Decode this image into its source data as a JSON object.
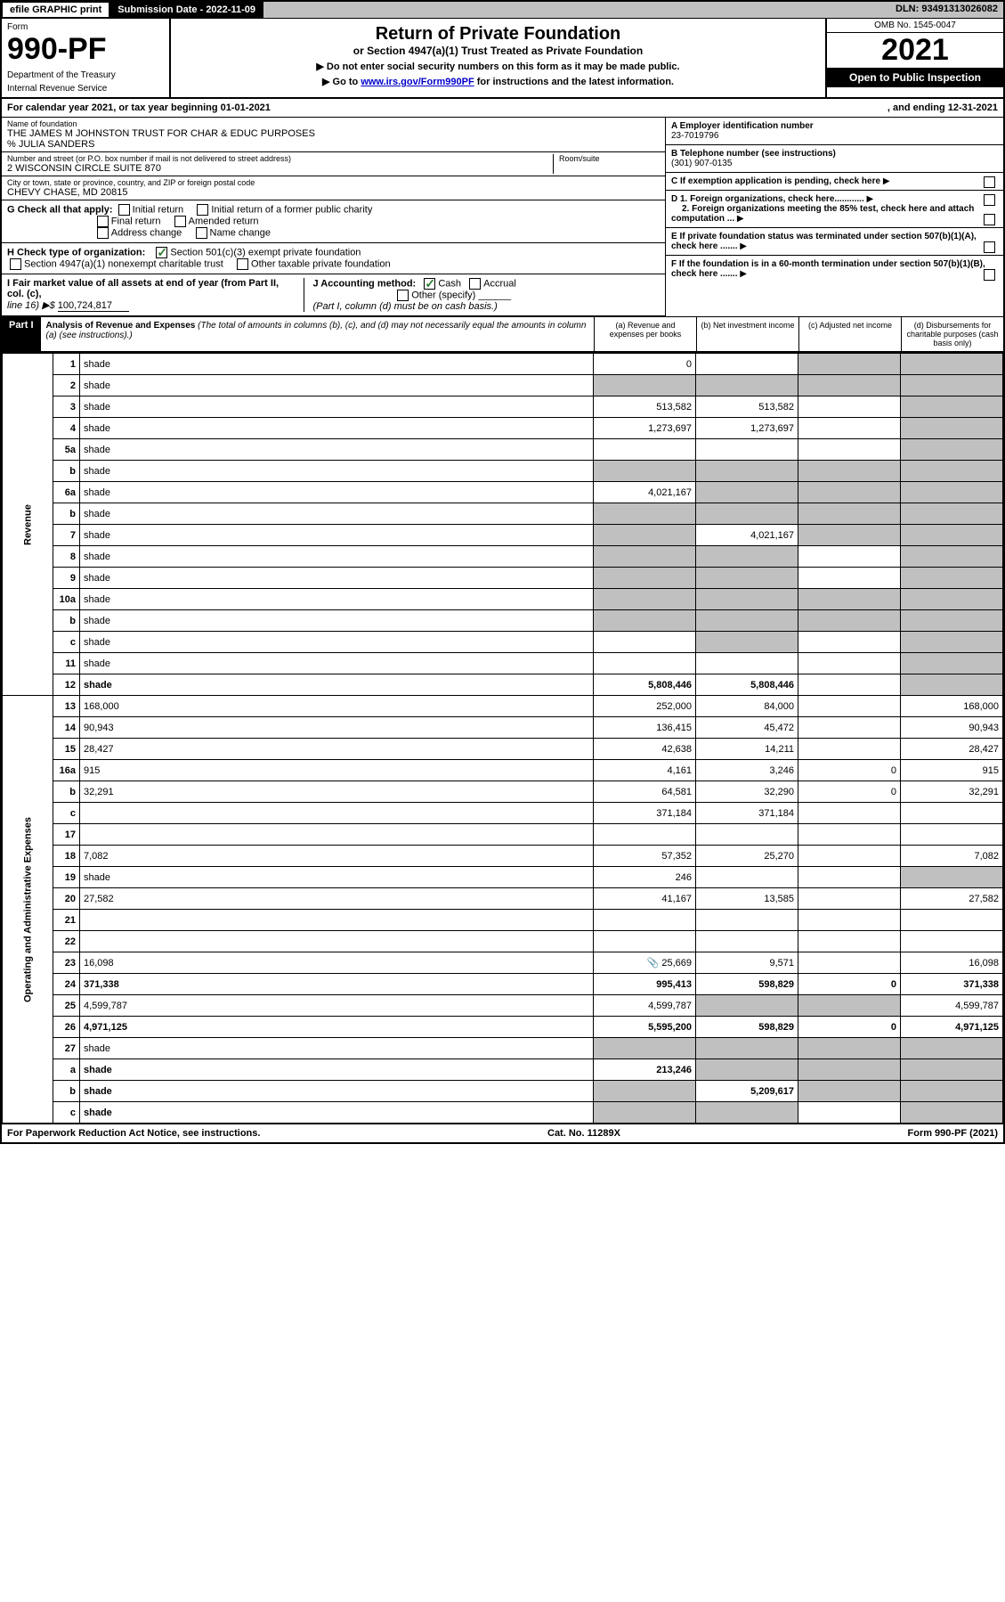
{
  "topbar": {
    "efile": "efile GRAPHIC print",
    "submission": "Submission Date - 2022-11-09",
    "dln": "DLN: 93491313026082"
  },
  "header": {
    "form_label": "Form",
    "form_number": "990-PF",
    "dept1": "Department of the Treasury",
    "dept2": "Internal Revenue Service",
    "title": "Return of Private Foundation",
    "subtitle": "or Section 4947(a)(1) Trust Treated as Private Foundation",
    "note1": "▶ Do not enter social security numbers on this form as it may be made public.",
    "note2_prefix": "▶ Go to ",
    "note2_link": "www.irs.gov/Form990PF",
    "note2_suffix": " for instructions and the latest information.",
    "omb": "OMB No. 1545-0047",
    "year": "2021",
    "open_public": "Open to Public Inspection"
  },
  "calendar": {
    "text": "For calendar year 2021, or tax year beginning 01-01-2021",
    "ending": ", and ending 12-31-2021"
  },
  "info": {
    "name_label": "Name of foundation",
    "name": "THE JAMES M JOHNSTON TRUST FOR CHAR & EDUC PURPOSES",
    "care_of": "% JULIA SANDERS",
    "street_label": "Number and street (or P.O. box number if mail is not delivered to street address)",
    "street": "2 WISCONSIN CIRCLE SUITE 870",
    "room_label": "Room/suite",
    "city_label": "City or town, state or province, country, and ZIP or foreign postal code",
    "city": "CHEVY CHASE, MD  20815",
    "ein_label": "A Employer identification number",
    "ein": "23-7019796",
    "phone_label": "B Telephone number (see instructions)",
    "phone": "(301) 907-0135",
    "c_label": "C If exemption application is pending, check here",
    "d1_label": "D 1. Foreign organizations, check here............",
    "d2_label": "2. Foreign organizations meeting the 85% test, check here and attach computation ...",
    "e_label": "E  If private foundation status was terminated under section 507(b)(1)(A), check here .......",
    "f_label": "F  If the foundation is in a 60-month termination under section 507(b)(1)(B), check here .......",
    "g_label": "G Check all that apply:",
    "g_opts": [
      "Initial return",
      "Initial return of a former public charity",
      "Final return",
      "Amended return",
      "Address change",
      "Name change"
    ],
    "h_label": "H Check type of organization:",
    "h_opts": [
      "Section 501(c)(3) exempt private foundation",
      "Section 4947(a)(1) nonexempt charitable trust",
      "Other taxable private foundation"
    ],
    "i_label": "I Fair market value of all assets at end of year (from Part II, col. (c),",
    "i_line": "line 16) ▶$",
    "i_value": "100,724,817",
    "j_label": "J Accounting method:",
    "j_cash": "Cash",
    "j_accrual": "Accrual",
    "j_other": "Other (specify)",
    "j_note": "(Part I, column (d) must be on cash basis.)"
  },
  "part1": {
    "label": "Part I",
    "title": "Analysis of Revenue and Expenses",
    "title_note": " (The total of amounts in columns (b), (c), and (d) may not necessarily equal the amounts in column (a) (see instructions).)",
    "col_a": "(a)  Revenue and expenses per books",
    "col_b": "(b)  Net investment income",
    "col_c": "(c)  Adjusted net income",
    "col_d": "(d)  Disbursements for charitable purposes (cash basis only)"
  },
  "sections": {
    "revenue": "Revenue",
    "expenses": "Operating and Administrative Expenses"
  },
  "rows": [
    {
      "n": "1",
      "d": "shade",
      "a": "0",
      "b": "",
      "c": "shade"
    },
    {
      "n": "2",
      "d": "shade",
      "a": "shade",
      "b": "shade",
      "c": "shade"
    },
    {
      "n": "3",
      "d": "shade",
      "a": "513,582",
      "b": "513,582",
      "c": ""
    },
    {
      "n": "4",
      "d": "shade",
      "a": "1,273,697",
      "b": "1,273,697",
      "c": ""
    },
    {
      "n": "5a",
      "d": "shade",
      "a": "",
      "b": "",
      "c": ""
    },
    {
      "n": "b",
      "d": "shade",
      "a": "shade",
      "b": "shade",
      "c": "shade"
    },
    {
      "n": "6a",
      "d": "shade",
      "a": "4,021,167",
      "b": "shade",
      "c": "shade"
    },
    {
      "n": "b",
      "d": "shade",
      "a": "shade",
      "b": "shade",
      "c": "shade"
    },
    {
      "n": "7",
      "d": "shade",
      "a": "shade",
      "b": "4,021,167",
      "c": "shade"
    },
    {
      "n": "8",
      "d": "shade",
      "a": "shade",
      "b": "shade",
      "c": ""
    },
    {
      "n": "9",
      "d": "shade",
      "a": "shade",
      "b": "shade",
      "c": ""
    },
    {
      "n": "10a",
      "d": "shade",
      "a": "shade",
      "b": "shade",
      "c": "shade"
    },
    {
      "n": "b",
      "d": "shade",
      "a": "shade",
      "b": "shade",
      "c": "shade"
    },
    {
      "n": "c",
      "d": "shade",
      "a": "",
      "b": "shade",
      "c": ""
    },
    {
      "n": "11",
      "d": "shade",
      "a": "",
      "b": "",
      "c": ""
    },
    {
      "n": "12",
      "d": "shade",
      "a": "5,808,446",
      "b": "5,808,446",
      "c": "",
      "bold": true
    }
  ],
  "exp_rows": [
    {
      "n": "13",
      "d": "168,000",
      "a": "252,000",
      "b": "84,000",
      "c": ""
    },
    {
      "n": "14",
      "d": "90,943",
      "a": "136,415",
      "b": "45,472",
      "c": ""
    },
    {
      "n": "15",
      "d": "28,427",
      "a": "42,638",
      "b": "14,211",
      "c": ""
    },
    {
      "n": "16a",
      "d": "915",
      "a": "4,161",
      "b": "3,246",
      "c": "0"
    },
    {
      "n": "b",
      "d": "32,291",
      "a": "64,581",
      "b": "32,290",
      "c": "0"
    },
    {
      "n": "c",
      "d": "",
      "a": "371,184",
      "b": "371,184",
      "c": ""
    },
    {
      "n": "17",
      "d": "",
      "a": "",
      "b": "",
      "c": ""
    },
    {
      "n": "18",
      "d": "7,082",
      "a": "57,352",
      "b": "25,270",
      "c": ""
    },
    {
      "n": "19",
      "d": "shade",
      "a": "246",
      "b": "",
      "c": ""
    },
    {
      "n": "20",
      "d": "27,582",
      "a": "41,167",
      "b": "13,585",
      "c": ""
    },
    {
      "n": "21",
      "d": "",
      "a": "",
      "b": "",
      "c": ""
    },
    {
      "n": "22",
      "d": "",
      "a": "",
      "b": "",
      "c": ""
    },
    {
      "n": "23",
      "d": "16,098",
      "a": "25,669",
      "b": "9,571",
      "c": "",
      "icon": true
    },
    {
      "n": "24",
      "d": "371,338",
      "a": "995,413",
      "b": "598,829",
      "c": "0",
      "bold": true
    },
    {
      "n": "25",
      "d": "4,599,787",
      "a": "4,599,787",
      "b": "shade",
      "c": "shade"
    },
    {
      "n": "26",
      "d": "4,971,125",
      "a": "5,595,200",
      "b": "598,829",
      "c": "0",
      "bold": true
    }
  ],
  "bottom_rows": [
    {
      "n": "27",
      "d": "shade",
      "a": "shade",
      "b": "shade",
      "c": "shade"
    },
    {
      "n": "a",
      "d": "shade",
      "a": "213,246",
      "b": "shade",
      "c": "shade",
      "bold": true
    },
    {
      "n": "b",
      "d": "shade",
      "a": "shade",
      "b": "5,209,617",
      "c": "shade",
      "bold": true
    },
    {
      "n": "c",
      "d": "shade",
      "a": "shade",
      "b": "shade",
      "c": "",
      "bold": true
    }
  ],
  "footer": {
    "left": "For Paperwork Reduction Act Notice, see instructions.",
    "center": "Cat. No. 11289X",
    "right": "Form 990-PF (2021)"
  }
}
